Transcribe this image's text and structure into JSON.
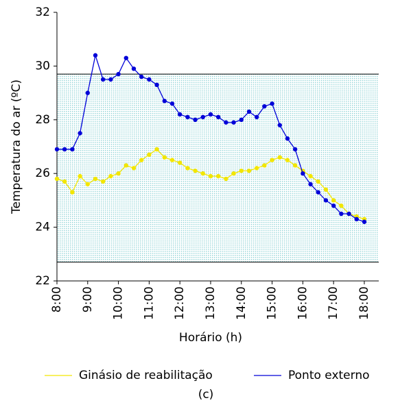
{
  "chart_data": {
    "type": "line",
    "y_label": "Temperatura do ar (ºC)",
    "x_label": "Horário (h)",
    "caption": "(c)",
    "x": [
      8,
      8.25,
      8.5,
      8.75,
      9,
      9.25,
      9.5,
      9.75,
      10,
      10.25,
      10.5,
      10.75,
      11,
      11.25,
      11.5,
      11.75,
      12,
      12.25,
      12.5,
      12.75,
      13,
      13.25,
      13.5,
      13.75,
      14,
      14.25,
      14.5,
      14.75,
      15,
      15.25,
      15.5,
      15.75,
      16,
      16.25,
      16.5,
      16.75,
      17,
      17.25,
      17.5,
      17.75,
      18
    ],
    "series": [
      {
        "name": "Ginásio de reabilitação",
        "color": "#f2e600",
        "values": [
          25.8,
          25.7,
          25.3,
          25.9,
          25.6,
          25.8,
          25.7,
          25.9,
          26.0,
          26.3,
          26.2,
          26.5,
          26.7,
          26.9,
          26.6,
          26.5,
          26.4,
          26.2,
          26.1,
          26.0,
          25.9,
          25.9,
          25.8,
          26.0,
          26.1,
          26.1,
          26.2,
          26.3,
          26.5,
          26.6,
          26.5,
          26.3,
          26.1,
          25.9,
          25.7,
          25.4,
          25.0,
          24.8,
          24.5,
          24.4,
          24.3
        ]
      },
      {
        "name": "Ponto externo",
        "color": "#0000d8",
        "values": [
          26.9,
          26.9,
          26.9,
          27.5,
          29.0,
          30.4,
          29.5,
          29.5,
          29.7,
          30.3,
          29.9,
          29.6,
          29.5,
          29.3,
          28.7,
          28.6,
          28.2,
          28.1,
          28.0,
          28.1,
          28.2,
          28.1,
          27.9,
          27.9,
          28.0,
          28.3,
          28.1,
          28.5,
          28.6,
          27.8,
          27.3,
          26.9,
          26.0,
          25.6,
          25.3,
          25.0,
          24.8,
          24.5,
          24.5,
          24.3,
          24.2
        ]
      }
    ],
    "comfort_band": [
      22.7,
      29.7
    ],
    "band_color": "#8fd3d6",
    "xlim": [
      8,
      18.47
    ],
    "xticks": [
      {
        "value": 8,
        "label": "8:00"
      },
      {
        "value": 9,
        "label": "9:00"
      },
      {
        "value": 10,
        "label": "10:00"
      },
      {
        "value": 11,
        "label": "11:00"
      },
      {
        "value": 12,
        "label": "12:00"
      },
      {
        "value": 13,
        "label": "13:00"
      },
      {
        "value": 14,
        "label": "14:00"
      },
      {
        "value": 15,
        "label": "15:00"
      },
      {
        "value": 16,
        "label": "16:00"
      },
      {
        "value": 17,
        "label": "17:00"
      },
      {
        "value": 18,
        "label": "18:00"
      }
    ],
    "ylim": [
      22,
      32
    ],
    "yticks": [
      22,
      24,
      26,
      28,
      30,
      32
    ]
  }
}
